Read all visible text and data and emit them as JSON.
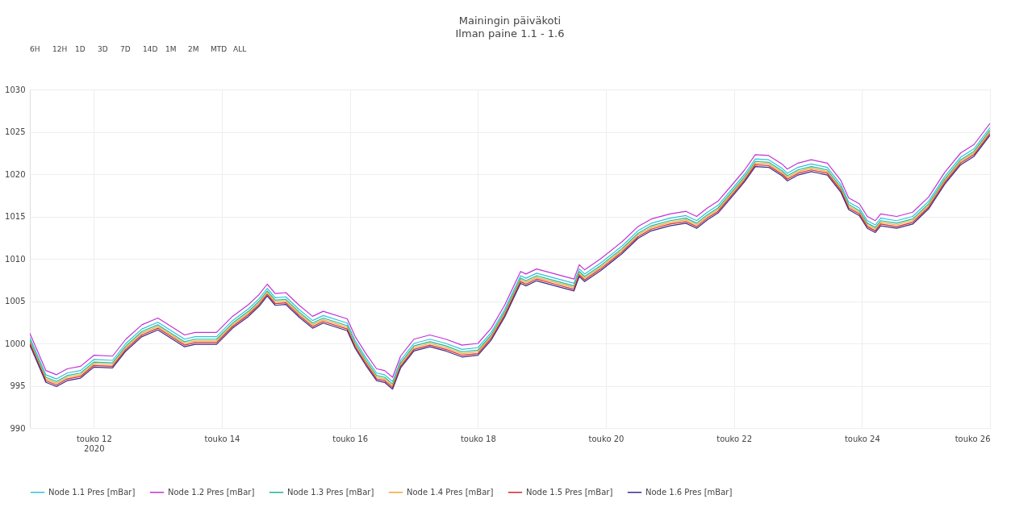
{
  "chart_data": {
    "type": "line",
    "title": "Mainingin päiväkoti",
    "subtitle": "Ilman paine 1.1 - 1.6",
    "annotations": [
      "6H",
      "12H",
      "1D",
      "3D",
      "7D",
      "14D",
      "1M",
      "2M",
      "MTD",
      "ALL"
    ],
    "x": [
      "2020-05-11T00:00",
      "2020-05-11T06:00",
      "2020-05-11T10:00",
      "2020-05-11T14:00",
      "2020-05-11T19:00",
      "2020-05-12T00:00",
      "2020-05-12T07:00",
      "2020-05-12T12:00",
      "2020-05-12T18:00",
      "2020-05-13T00:00",
      "2020-05-13T05:00",
      "2020-05-13T10:00",
      "2020-05-13T14:00",
      "2020-05-13T22:00",
      "2020-05-14T04:00",
      "2020-05-14T10:00",
      "2020-05-14T14:00",
      "2020-05-14T17:00",
      "2020-05-14T20:00",
      "2020-05-15T00:00",
      "2020-05-15T05:00",
      "2020-05-15T10:00",
      "2020-05-15T14:00",
      "2020-05-15T23:00",
      "2020-05-16T02:00",
      "2020-05-16T06:00",
      "2020-05-16T10:00",
      "2020-05-16T13:00",
      "2020-05-16T16:00",
      "2020-05-16T19:00",
      "2020-05-17T00:00",
      "2020-05-17T06:00",
      "2020-05-17T12:00",
      "2020-05-17T18:00",
      "2020-05-18T00:00",
      "2020-05-18T05:00",
      "2020-05-18T10:00",
      "2020-05-18T13:00",
      "2020-05-18T16:00",
      "2020-05-18T18:00",
      "2020-05-18T22:00",
      "2020-05-19T05:00",
      "2020-05-19T12:00",
      "2020-05-19T14:00",
      "2020-05-19T16:00",
      "2020-05-19T22:00",
      "2020-05-20T06:00",
      "2020-05-20T12:00",
      "2020-05-20T17:00",
      "2020-05-21T00:00",
      "2020-05-21T06:00",
      "2020-05-21T10:00",
      "2020-05-21T14:00",
      "2020-05-21T18:00",
      "2020-05-22T00:00",
      "2020-05-22T04:00",
      "2020-05-22T08:00",
      "2020-05-22T13:00",
      "2020-05-22T18:00",
      "2020-05-22T20:00",
      "2020-05-23T00:00",
      "2020-05-23T05:00",
      "2020-05-23T11:00",
      "2020-05-23T16:00",
      "2020-05-23T19:00",
      "2020-05-23T23:00",
      "2020-05-24T02:00",
      "2020-05-24T05:00",
      "2020-05-24T07:00",
      "2020-05-24T13:00",
      "2020-05-24T19:00",
      "2020-05-25T01:00",
      "2020-05-25T07:00",
      "2020-05-25T13:00",
      "2020-05-25T18:00",
      "2020-05-26T00:00"
    ],
    "series": [
      {
        "name": "Node 1.1 Pres [mBar]",
        "color": "#2ec4d6",
        "values": [
          1000.7,
          996.3,
          995.8,
          996.5,
          996.8,
          998.1,
          998.0,
          1000.0,
          1001.7,
          1002.5,
          1001.5,
          1000.5,
          1000.8,
          1000.8,
          1002.7,
          1004.1,
          1005.3,
          1006.5,
          1005.4,
          1005.5,
          1004.0,
          1002.7,
          1003.3,
          1002.4,
          1000.3,
          998.3,
          996.5,
          996.3,
          995.5,
          998.0,
          1000.0,
          1000.5,
          1000.0,
          999.3,
          999.5,
          1001.3,
          1004.0,
          1006.0,
          1008.0,
          1007.7,
          1008.3,
          1007.7,
          1007.1,
          1008.8,
          1008.2,
          1009.5,
          1011.5,
          1013.3,
          1014.2,
          1014.8,
          1015.1,
          1014.5,
          1015.5,
          1016.3,
          1018.5,
          1020.0,
          1021.8,
          1021.7,
          1020.7,
          1020.1,
          1020.8,
          1021.2,
          1020.8,
          1018.8,
          1016.7,
          1016.0,
          1014.5,
          1014.0,
          1014.8,
          1014.5,
          1015.0,
          1016.8,
          1019.7,
          1022.0,
          1023.0,
          1025.5
        ]
      },
      {
        "name": "Node 1.2 Pres [mBar]",
        "color": "#c531d6",
        "values": [
          1001.2,
          996.8,
          996.3,
          997.0,
          997.3,
          998.6,
          998.5,
          1000.5,
          1002.2,
          1003.0,
          1002.0,
          1001.0,
          1001.3,
          1001.3,
          1003.2,
          1004.6,
          1005.8,
          1007.0,
          1005.9,
          1006.0,
          1004.5,
          1003.2,
          1003.8,
          1002.9,
          1000.8,
          998.8,
          997.0,
          996.8,
          996.0,
          998.5,
          1000.5,
          1001.0,
          1000.5,
          999.8,
          1000.0,
          1001.8,
          1004.5,
          1006.5,
          1008.5,
          1008.2,
          1008.8,
          1008.2,
          1007.6,
          1009.3,
          1008.7,
          1010.0,
          1012.0,
          1013.8,
          1014.7,
          1015.3,
          1015.6,
          1015.0,
          1016.0,
          1016.8,
          1019.0,
          1020.5,
          1022.3,
          1022.2,
          1021.2,
          1020.6,
          1021.3,
          1021.7,
          1021.3,
          1019.3,
          1017.2,
          1016.5,
          1015.0,
          1014.5,
          1015.3,
          1015.0,
          1015.5,
          1017.3,
          1020.2,
          1022.5,
          1023.5,
          1026.0
        ]
      },
      {
        "name": "Node 1.3 Pres [mBar]",
        "color": "#1fb58f",
        "values": [
          1000.4,
          996.0,
          995.5,
          996.2,
          996.5,
          997.8,
          997.7,
          999.7,
          1001.4,
          1002.2,
          1001.2,
          1000.2,
          1000.5,
          1000.5,
          1002.4,
          1003.8,
          1005.0,
          1006.2,
          1005.1,
          1005.2,
          1003.7,
          1002.4,
          1003.0,
          1002.1,
          1000.0,
          998.0,
          996.2,
          996.0,
          995.2,
          997.7,
          999.7,
          1000.2,
          999.7,
          999.0,
          999.2,
          1001.0,
          1003.7,
          1005.7,
          1007.7,
          1007.4,
          1008.0,
          1007.4,
          1006.8,
          1008.5,
          1007.9,
          1009.2,
          1011.2,
          1013.0,
          1013.9,
          1014.5,
          1014.8,
          1014.2,
          1015.2,
          1016.0,
          1018.2,
          1019.7,
          1021.5,
          1021.4,
          1020.4,
          1019.8,
          1020.5,
          1020.9,
          1020.5,
          1018.5,
          1016.4,
          1015.7,
          1014.2,
          1013.7,
          1014.5,
          1014.2,
          1014.7,
          1016.5,
          1019.4,
          1021.7,
          1022.7,
          1025.2
        ]
      },
      {
        "name": "Node 1.4 Pres [mBar]",
        "color": "#f0a830",
        "values": [
          1000.2,
          995.8,
          995.3,
          996.0,
          996.3,
          997.6,
          997.5,
          999.5,
          1001.2,
          1002.0,
          1001.0,
          1000.0,
          1000.3,
          1000.3,
          1002.2,
          1003.6,
          1004.8,
          1006.0,
          1004.9,
          1005.0,
          1003.5,
          1002.2,
          1002.8,
          1001.9,
          999.8,
          997.8,
          996.0,
          995.8,
          995.0,
          997.5,
          999.5,
          1000.0,
          999.5,
          998.8,
          999.0,
          1000.8,
          1003.5,
          1005.5,
          1007.5,
          1007.2,
          1007.8,
          1007.2,
          1006.6,
          1008.3,
          1007.7,
          1009.0,
          1011.0,
          1012.8,
          1013.7,
          1014.3,
          1014.6,
          1014.0,
          1015.0,
          1015.8,
          1018.0,
          1019.5,
          1021.3,
          1021.2,
          1020.2,
          1019.6,
          1020.3,
          1020.7,
          1020.3,
          1018.3,
          1016.2,
          1015.5,
          1014.0,
          1013.5,
          1014.3,
          1014.0,
          1014.5,
          1016.3,
          1019.2,
          1021.5,
          1022.5,
          1025.0
        ]
      },
      {
        "name": "Node 1.5 Pres [mBar]",
        "color": "#d62728",
        "values": [
          1000.0,
          995.6,
          995.1,
          995.8,
          996.1,
          997.4,
          997.3,
          999.3,
          1001.0,
          1001.8,
          1000.8,
          999.8,
          1000.1,
          1000.1,
          1002.0,
          1003.4,
          1004.6,
          1005.8,
          1004.7,
          1004.8,
          1003.3,
          1002.0,
          1002.6,
          1001.7,
          999.6,
          997.6,
          995.8,
          995.6,
          994.8,
          997.3,
          999.3,
          999.8,
          999.3,
          998.6,
          998.8,
          1000.6,
          1003.3,
          1005.3,
          1007.3,
          1007.0,
          1007.6,
          1007.0,
          1006.4,
          1008.1,
          1007.5,
          1008.8,
          1010.8,
          1012.6,
          1013.5,
          1014.1,
          1014.4,
          1013.8,
          1014.8,
          1015.6,
          1017.8,
          1019.3,
          1021.1,
          1021.0,
          1020.0,
          1019.4,
          1020.1,
          1020.5,
          1020.1,
          1018.1,
          1016.0,
          1015.3,
          1013.8,
          1013.3,
          1014.1,
          1013.8,
          1014.3,
          1016.1,
          1019.0,
          1021.3,
          1022.3,
          1024.8
        ]
      },
      {
        "name": "Node 1.6 Pres [mBar]",
        "color": "#3b2a8a",
        "values": [
          999.8,
          995.4,
          994.9,
          995.6,
          995.9,
          997.2,
          997.1,
          999.1,
          1000.8,
          1001.6,
          1000.6,
          999.6,
          999.9,
          999.9,
          1001.8,
          1003.2,
          1004.4,
          1005.6,
          1004.5,
          1004.6,
          1003.1,
          1001.8,
          1002.4,
          1001.5,
          999.4,
          997.4,
          995.6,
          995.4,
          994.6,
          997.1,
          999.1,
          999.6,
          999.1,
          998.4,
          998.6,
          1000.4,
          1003.1,
          1005.1,
          1007.1,
          1006.8,
          1007.4,
          1006.8,
          1006.2,
          1007.9,
          1007.3,
          1008.6,
          1010.6,
          1012.4,
          1013.3,
          1013.9,
          1014.2,
          1013.6,
          1014.6,
          1015.4,
          1017.6,
          1019.1,
          1020.9,
          1020.8,
          1019.8,
          1019.2,
          1019.9,
          1020.3,
          1019.9,
          1017.9,
          1015.8,
          1015.1,
          1013.6,
          1013.1,
          1013.9,
          1013.6,
          1014.1,
          1015.9,
          1018.8,
          1021.1,
          1022.1,
          1024.6
        ]
      }
    ],
    "xlim": [
      "2020-05-11T00:00",
      "2020-05-26T00:00"
    ],
    "xticks": [
      {
        "value": "2020-05-12",
        "label": "touko 12\n2020"
      },
      {
        "value": "2020-05-14",
        "label": "touko 14"
      },
      {
        "value": "2020-05-16",
        "label": "touko 16"
      },
      {
        "value": "2020-05-18",
        "label": "touko 18"
      },
      {
        "value": "2020-05-20",
        "label": "touko 20"
      },
      {
        "value": "2020-05-22",
        "label": "touko 22"
      },
      {
        "value": "2020-05-24",
        "label": "touko 24"
      },
      {
        "value": "2020-05-26",
        "label": "touko 26"
      }
    ],
    "ylim": [
      990,
      1030
    ],
    "yticks": [
      990,
      995,
      1000,
      1005,
      1010,
      1015,
      1020,
      1025,
      1030
    ],
    "grid": true,
    "legend": "bottom"
  }
}
